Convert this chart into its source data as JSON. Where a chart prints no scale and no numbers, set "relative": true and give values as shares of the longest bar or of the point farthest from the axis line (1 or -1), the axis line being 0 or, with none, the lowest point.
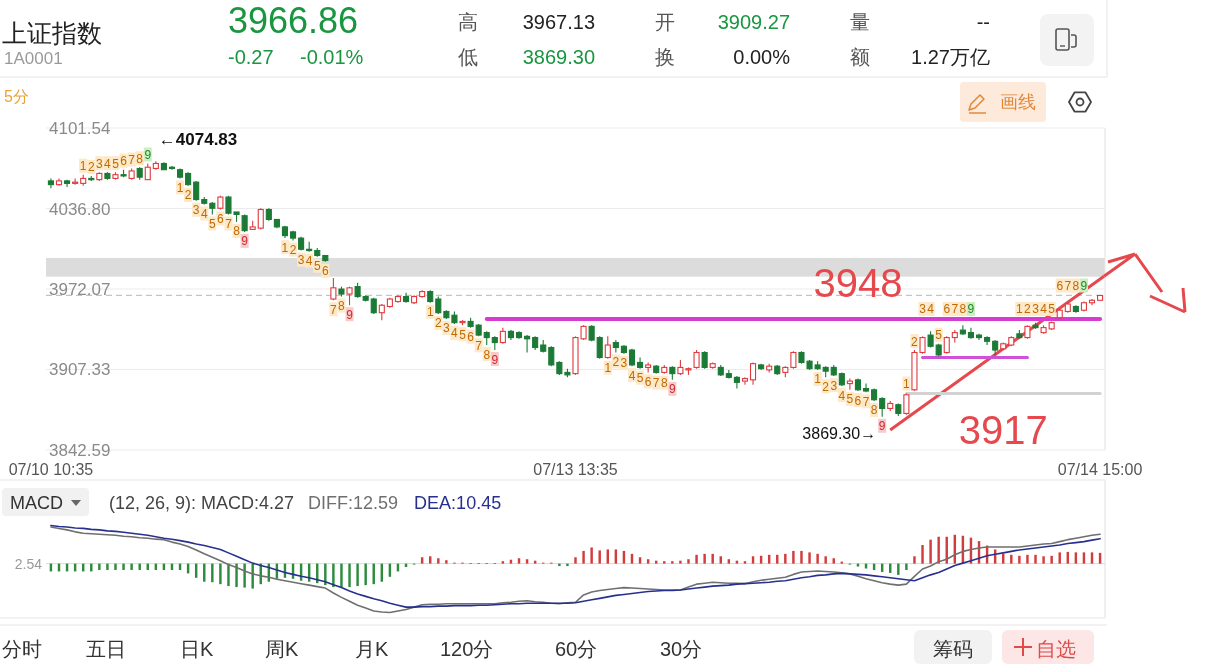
{
  "chart_data": [
    {
      "type": "other",
      "title": "上证指数",
      "subtitle": "1A0001",
      "annotations": [
        "3966.86",
        "-0.27",
        "-0.01%",
        "高",
        "3967.13",
        "低",
        "3869.30",
        "开",
        "3909.27",
        "换",
        "0.00%",
        "量",
        "--",
        "额",
        "1.27万亿",
        "5分",
        "画线"
      ]
    },
    {
      "type": "candlestick",
      "categories": [
        "07/10 10:35",
        null,
        null,
        null,
        null,
        null,
        null,
        null,
        null,
        null,
        null,
        null,
        null,
        null,
        null,
        null,
        null,
        null,
        null,
        null,
        null,
        null,
        null,
        null,
        null,
        null,
        null,
        null,
        null,
        null,
        null,
        null,
        null,
        null,
        null,
        null,
        null,
        null,
        null,
        null,
        null,
        null,
        null,
        null,
        null,
        null,
        null,
        null,
        null,
        null,
        null,
        null,
        null,
        null,
        null,
        null,
        null,
        null,
        null,
        null,
        null,
        null,
        null,
        null,
        null,
        "07/13 13:35",
        null,
        null,
        null,
        null,
        null,
        null,
        null,
        null,
        null,
        null,
        null,
        null,
        null,
        null,
        null,
        null,
        null,
        null,
        null,
        null,
        null,
        null,
        null,
        null,
        null,
        null,
        null,
        null,
        null,
        null,
        null,
        null,
        null,
        null,
        null,
        null,
        null,
        null,
        null,
        null,
        null,
        null,
        null,
        null,
        null,
        null,
        null,
        null,
        null,
        null,
        null,
        null,
        null,
        null,
        null,
        null,
        null,
        null,
        null,
        null,
        null,
        null,
        null,
        null,
        "07/14 15:00"
      ],
      "ohlc": [
        [
          4059,
          4061,
          4053,
          4056
        ],
        [
          4056,
          4061,
          4055,
          4059
        ],
        [
          4059,
          4060,
          4054,
          4057
        ],
        [
          4057,
          4061,
          4056,
          4058
        ],
        [
          4057,
          4064,
          4055,
          4061
        ],
        [
          4061,
          4063,
          4059,
          4060
        ],
        [
          4060,
          4066,
          4059,
          4065
        ],
        [
          4065,
          4066,
          4060,
          4061
        ],
        [
          4061,
          4066,
          4060,
          4064
        ],
        [
          4064,
          4068,
          4062,
          4063
        ],
        [
          4061,
          4069,
          4060,
          4067
        ],
        [
          4069,
          4070,
          4060,
          4062
        ],
        [
          4060,
          4073,
          4060,
          4070
        ],
        [
          4069,
          4074.83,
          4068,
          4073
        ],
        [
          4073,
          4074,
          4068,
          4068
        ],
        [
          4070,
          4071,
          4068,
          4069
        ],
        [
          4068,
          4069,
          4061,
          4062
        ],
        [
          4065,
          4066,
          4055,
          4056
        ],
        [
          4058,
          4059,
          4043,
          4044
        ],
        [
          4044,
          4046,
          4040,
          4041
        ],
        [
          4041,
          4042,
          4032,
          4037
        ],
        [
          4037,
          4047,
          4036,
          4046
        ],
        [
          4046,
          4047,
          4032,
          4033
        ],
        [
          4034,
          4034,
          4026,
          4032
        ],
        [
          4031,
          4032,
          4018,
          4019
        ],
        [
          4020,
          4027,
          4020,
          4022
        ],
        [
          4021,
          4037,
          4020,
          4036
        ],
        [
          4036,
          4037,
          4027,
          4028
        ],
        [
          4028,
          4028,
          4021,
          4022
        ],
        [
          4022,
          4023,
          4013,
          4015
        ],
        [
          4018,
          4019,
          4011,
          4013
        ],
        [
          4013,
          4014,
          4003,
          4004
        ],
        [
          4004,
          4010,
          4002,
          4003
        ],
        [
          4003,
          4005,
          3998,
          3999
        ],
        [
          3999,
          3999,
          3994,
          3995
        ],
        [
          3964,
          3981,
          3963,
          3973
        ],
        [
          3972,
          3974,
          3966,
          3968
        ],
        [
          3968,
          3974,
          3959,
          3973
        ],
        [
          3974,
          3977,
          3965,
          3966
        ],
        [
          3966,
          3967,
          3962,
          3963
        ],
        [
          3964,
          3965,
          3952,
          3953
        ],
        [
          3953,
          3960,
          3947,
          3959
        ],
        [
          3958,
          3965,
          3957,
          3964
        ],
        [
          3962,
          3967,
          3961,
          3966
        ],
        [
          3966,
          3969,
          3961,
          3962
        ],
        [
          3961,
          3967,
          3960,
          3966
        ],
        [
          3966,
          3971,
          3965,
          3970
        ],
        [
          3970,
          3971,
          3961,
          3962
        ],
        [
          3964,
          3966,
          3952,
          3953
        ],
        [
          3954,
          3955,
          3948,
          3949
        ],
        [
          3951,
          3954,
          3944,
          3945
        ],
        [
          3945,
          3947,
          3943,
          3946
        ],
        [
          3946,
          3949,
          3941,
          3942
        ],
        [
          3943,
          3944,
          3934,
          3935
        ],
        [
          3937,
          3938,
          3927,
          3933
        ],
        [
          3933,
          3934,
          3923,
          3929
        ],
        [
          3929,
          3941,
          3928,
          3938
        ],
        [
          3938,
          3939,
          3931,
          3933
        ],
        [
          3937,
          3938,
          3932,
          3933
        ],
        [
          3934,
          3935,
          3921,
          3932
        ],
        [
          3933,
          3934,
          3923,
          3925
        ],
        [
          3927,
          3931,
          3921,
          3922
        ],
        [
          3925,
          3926,
          3910,
          3911
        ],
        [
          3913,
          3914,
          3903,
          3904
        ],
        [
          3905,
          3908,
          3901,
          3903
        ],
        [
          3904,
          3934,
          3903,
          3933
        ],
        [
          3932,
          3943,
          3931,
          3942
        ],
        [
          3942,
          3943,
          3930,
          3931
        ],
        [
          3933,
          3934,
          3916,
          3917
        ],
        [
          3917,
          3934,
          3916,
          3927
        ],
        [
          3929,
          3931,
          3921,
          3925
        ],
        [
          3926,
          3927,
          3920,
          3921
        ],
        [
          3923,
          3924,
          3910,
          3911
        ],
        [
          3913,
          3917,
          3908,
          3909
        ],
        [
          3909,
          3913,
          3905,
          3911
        ],
        [
          3910,
          3911,
          3904,
          3905
        ],
        [
          3905,
          3911,
          3904,
          3909
        ],
        [
          3909,
          3910,
          3899,
          3904
        ],
        [
          3904,
          3915,
          3903,
          3909
        ],
        [
          3907,
          3909,
          3903,
          3908
        ],
        [
          3909,
          3923,
          3908,
          3921
        ],
        [
          3921,
          3922,
          3908,
          3909
        ],
        [
          3909,
          3913,
          3908,
          3912
        ],
        [
          3909,
          3911,
          3902,
          3903
        ],
        [
          3904,
          3907,
          3900,
          3901
        ],
        [
          3901,
          3902,
          3892,
          3897
        ],
        [
          3898,
          3901,
          3895,
          3900
        ],
        [
          3899,
          3913,
          3895,
          3912
        ],
        [
          3911,
          3912,
          3907,
          3908
        ],
        [
          3907,
          3912,
          3905,
          3910
        ],
        [
          3910,
          3911,
          3903,
          3904
        ],
        [
          3905,
          3910,
          3901,
          3909
        ],
        [
          3909,
          3922,
          3908,
          3921
        ],
        [
          3921,
          3922,
          3912,
          3913
        ],
        [
          3914,
          3915,
          3907,
          3908
        ],
        [
          3911,
          3914,
          3907,
          3908
        ],
        [
          3909,
          3910,
          3901,
          3906
        ],
        [
          3909,
          3911,
          3902,
          3903
        ],
        [
          3904,
          3905,
          3894,
          3895
        ],
        [
          3896,
          3900,
          3891,
          3898
        ],
        [
          3899,
          3900,
          3890,
          3891
        ],
        [
          3892,
          3896,
          3889,
          3890
        ],
        [
          3891,
          3892,
          3882,
          3883
        ],
        [
          3884,
          3885,
          3869.3,
          3876
        ],
        [
          3876,
          3882,
          3874,
          3880
        ],
        [
          3879,
          3880,
          3870,
          3872
        ],
        [
          3872,
          3888,
          3871,
          3887
        ],
        [
          3891,
          3923,
          3890,
          3921
        ],
        [
          3921,
          3934,
          3920,
          3933
        ],
        [
          3935,
          3938,
          3925,
          3926
        ],
        [
          3927,
          3928,
          3918,
          3919
        ],
        [
          3921,
          3934,
          3920,
          3933
        ],
        [
          3933,
          3939,
          3929,
          3937
        ],
        [
          3939,
          3943,
          3935,
          3936
        ],
        [
          3937,
          3941,
          3932,
          3933
        ],
        [
          3935,
          3936,
          3931,
          3933
        ],
        [
          3933,
          3934,
          3927,
          3930
        ],
        [
          3930,
          3931,
          3919,
          3923
        ],
        [
          3924,
          3929,
          3923,
          3928
        ],
        [
          3927,
          3934,
          3926,
          3933
        ],
        [
          3936,
          3939,
          3932,
          3933
        ],
        [
          3933,
          3943,
          3932,
          3942
        ],
        [
          3943,
          3945,
          3940,
          3941
        ],
        [
          3937,
          3943,
          3936,
          3941
        ],
        [
          3940,
          3946,
          3939,
          3945
        ],
        [
          3949,
          3956,
          3948,
          3955
        ],
        [
          3954,
          3961,
          3953,
          3960
        ],
        [
          3958,
          3959,
          3953,
          3954
        ],
        [
          3955,
          3962,
          3954,
          3961
        ],
        [
          3961,
          3964,
          3959,
          3963
        ],
        [
          3963,
          3967.13,
          3963,
          3966.86
        ]
      ],
      "colors": [
        "#1b7a35",
        "#e0393e",
        "#1b7a35",
        "#e0393e",
        "#e0393e",
        "#1b7a35",
        "#e0393e",
        "#1b7a35",
        "#e0393e",
        "#1b7a35",
        "#e0393e",
        "#1b7a35",
        "#e0393e",
        "#e0393e",
        "#1b7a35",
        "#1b7a35",
        "#1b7a35",
        "#1b7a35",
        "#1b7a35",
        "#1b7a35",
        "#1b7a35",
        "#e0393e",
        "#1b7a35",
        "#1b7a35",
        "#1b7a35",
        "#e0393e",
        "#e0393e",
        "#1b7a35",
        "#1b7a35",
        "#1b7a35",
        "#1b7a35",
        "#1b7a35",
        "#1b7a35",
        "#1b7a35",
        "#1b7a35",
        "#e0393e",
        "#1b7a35",
        "#e0393e",
        "#1b7a35",
        "#1b7a35",
        "#1b7a35",
        "#e0393e",
        "#e0393e",
        "#e0393e",
        "#1b7a35",
        "#e0393e",
        "#e0393e",
        "#1b7a35",
        "#1b7a35",
        "#1b7a35",
        "#1b7a35",
        "#e0393e",
        "#1b7a35",
        "#1b7a35",
        "#1b7a35",
        "#1b7a35",
        "#e0393e",
        "#1b7a35",
        "#1b7a35",
        "#1b7a35",
        "#1b7a35",
        "#1b7a35",
        "#1b7a35",
        "#1b7a35",
        "#1b7a35",
        "#e0393e",
        "#e0393e",
        "#1b7a35",
        "#1b7a35",
        "#e0393e",
        "#1b7a35",
        "#1b7a35",
        "#1b7a35",
        "#1b7a35",
        "#e0393e",
        "#1b7a35",
        "#e0393e",
        "#1b7a35",
        "#e0393e",
        "#e0393e",
        "#e0393e",
        "#1b7a35",
        "#e0393e",
        "#1b7a35",
        "#1b7a35",
        "#1b7a35",
        "#e0393e",
        "#e0393e",
        "#1b7a35",
        "#e0393e",
        "#1b7a35",
        "#e0393e",
        "#e0393e",
        "#1b7a35",
        "#1b7a35",
        "#1b7a35",
        "#1b7a35",
        "#1b7a35",
        "#1b7a35",
        "#e0393e",
        "#1b7a35",
        "#1b7a35",
        "#1b7a35",
        "#1b7a35",
        "#e0393e",
        "#1b7a35",
        "#e0393e",
        "#e0393e",
        "#e0393e",
        "#1b7a35",
        "#1b7a35",
        "#e0393e",
        "#e0393e",
        "#1b7a35",
        "#1b7a35",
        "#1b7a35",
        "#1b7a35",
        "#1b7a35",
        "#e0393e",
        "#e0393e",
        "#1b7a35",
        "#e0393e",
        "#1b7a35",
        "#e0393e",
        "#e0393e",
        "#e0393e",
        "#e0393e",
        "#1b7a35",
        "#e0393e",
        "#e0393e",
        "#e0393e"
      ],
      "ylim": [
        3842.59,
        4101.54
      ],
      "yticks": [
        4101.54,
        {
          "value": 4036.8,
          "label": "4036.80"
        },
        3972.07,
        3907.33,
        3842.59
      ],
      "grid": "y",
      "value_labels": [
        null,
        null,
        null,
        null,
        "1",
        "2",
        "3",
        "4",
        "5",
        "6",
        "7",
        "8",
        "9",
        null,
        null,
        null,
        "1",
        "2",
        "3",
        "4",
        "5",
        "6",
        "7",
        "8",
        "9",
        null,
        null,
        null,
        null,
        "1",
        "2",
        "3",
        "4",
        "5",
        "6",
        "7",
        "8",
        "9",
        null,
        null,
        null,
        null,
        null,
        null,
        null,
        null,
        null,
        "1",
        "2",
        "3",
        "4",
        "5",
        "6",
        "7",
        "8",
        "9",
        null,
        null,
        null,
        null,
        null,
        null,
        null,
        null,
        null,
        null,
        null,
        null,
        null,
        "1",
        "2",
        "3",
        "4",
        "5",
        "6",
        "7",
        "8",
        "9",
        null,
        null,
        null,
        null,
        null,
        null,
        null,
        null,
        null,
        null,
        null,
        null,
        null,
        null,
        null,
        null,
        null,
        "1",
        "2",
        "3",
        "4",
        "5",
        "6",
        "7",
        "8",
        "9",
        null,
        null,
        "1",
        "2",
        "3",
        "4",
        "5",
        "6",
        "7",
        "8",
        "9",
        null,
        null,
        null,
        null,
        null,
        "1",
        "2",
        "3",
        "4",
        "5",
        "6",
        "7",
        "8",
        "9",
        null,
        null
      ],
      "ref_lines": [
        {
          "axis": "y",
          "value": 3966.86,
          "color": "#c4c4c4",
          "line_style": "dashed"
        }
      ],
      "bands": [
        {
          "axis": "y",
          "from": 3982,
          "to": 3997,
          "color": "#dcdcdc"
        }
      ],
      "series": [
        {
          "type": "line",
          "color": "#d63ccf",
          "values": [
            null,
            null,
            null,
            null,
            null,
            null,
            null,
            null,
            null,
            null,
            null,
            null,
            null,
            null,
            null,
            null,
            null,
            null,
            null,
            null,
            null,
            null,
            null,
            null,
            null,
            null,
            null,
            null,
            null,
            null,
            null,
            null,
            null,
            null,
            null,
            null,
            null,
            null,
            null,
            null,
            null,
            null,
            null,
            null,
            null,
            null,
            null,
            null,
            null,
            null,
            null,
            null,
            null,
            null,
            3948,
            3948,
            3948,
            3948,
            3948,
            3948,
            3948,
            3948,
            3948,
            3948,
            3948,
            3948,
            3948,
            3948,
            3948,
            3948,
            3948,
            3948,
            3948,
            3948,
            3948,
            3948,
            3948,
            3948,
            3948,
            3948,
            3948,
            3948,
            3948,
            3948,
            3948,
            3948,
            3948,
            3948,
            3948,
            3948,
            3948,
            3948,
            3948,
            3948,
            3948,
            3948,
            3948,
            3948,
            3948,
            3948,
            3948,
            3948,
            3948,
            3948,
            3948,
            3948,
            3948,
            3948,
            3948,
            3948,
            3948,
            3948,
            3948,
            3948,
            3948,
            3948,
            3948,
            3948,
            3948,
            3948,
            3948,
            3948,
            3948,
            3948,
            3948,
            3948,
            3948,
            3948,
            3948,
            3948,
            3948
          ]
        },
        {
          "type": "line",
          "color": "#d050d8",
          "values": [
            null,
            null,
            null,
            null,
            null,
            null,
            null,
            null,
            null,
            null,
            null,
            null,
            null,
            null,
            null,
            null,
            null,
            null,
            null,
            null,
            null,
            null,
            null,
            null,
            null,
            null,
            null,
            null,
            null,
            null,
            null,
            null,
            null,
            null,
            null,
            null,
            null,
            null,
            null,
            null,
            null,
            null,
            null,
            null,
            null,
            null,
            null,
            null,
            null,
            null,
            null,
            null,
            null,
            null,
            null,
            null,
            null,
            null,
            null,
            null,
            null,
            null,
            null,
            null,
            null,
            null,
            null,
            null,
            null,
            null,
            null,
            null,
            null,
            null,
            null,
            null,
            null,
            null,
            null,
            null,
            null,
            null,
            null,
            null,
            null,
            null,
            null,
            null,
            null,
            null,
            null,
            null,
            null,
            null,
            null,
            null,
            null,
            null,
            null,
            null,
            null,
            null,
            null,
            null,
            null,
            null,
            null,
            null,
            3917,
            3917,
            3917,
            3917,
            3917,
            3917,
            3917,
            3917,
            3917,
            3917,
            3917,
            3917,
            3917,
            3917,
            null,
            null,
            null,
            null,
            null,
            null,
            null,
            null,
            null
          ]
        },
        {
          "type": "line",
          "color": "#d2d2d2",
          "values": [
            null,
            null,
            null,
            null,
            null,
            null,
            null,
            null,
            null,
            null,
            null,
            null,
            null,
            null,
            null,
            null,
            null,
            null,
            null,
            null,
            null,
            null,
            null,
            null,
            null,
            null,
            null,
            null,
            null,
            null,
            null,
            null,
            null,
            null,
            null,
            null,
            null,
            null,
            null,
            null,
            null,
            null,
            null,
            null,
            null,
            null,
            null,
            null,
            null,
            null,
            null,
            null,
            null,
            null,
            null,
            null,
            null,
            null,
            null,
            null,
            null,
            null,
            null,
            null,
            null,
            null,
            null,
            null,
            null,
            null,
            null,
            null,
            null,
            null,
            null,
            null,
            null,
            null,
            null,
            null,
            null,
            null,
            null,
            null,
            null,
            null,
            null,
            null,
            null,
            null,
            null,
            null,
            null,
            null,
            null,
            null,
            null,
            null,
            null,
            null,
            null,
            null,
            null,
            null,
            null,
            null,
            3888,
            3888,
            3888,
            3888,
            3888,
            3888,
            3888,
            3888,
            3888,
            3888,
            3888,
            3888,
            3888,
            3888,
            3888,
            3888,
            3888,
            3888,
            3888,
            3888,
            3888,
            3888,
            3888,
            3888,
            3888
          ]
        }
      ],
      "annotations": [
        "←4074.83",
        "3869.30→",
        "3948",
        "3917"
      ]
    },
    {
      "type": "bar",
      "title": "MACD",
      "subtitle": "(12, 26, 9): MACD:4.27",
      "relative": true,
      "legend": "top left",
      "annotations": [
        "2.54"
      ],
      "categories": [
        null,
        null,
        null,
        null,
        null,
        null,
        null,
        null,
        null,
        null,
        null,
        null,
        null,
        null,
        null,
        null,
        null,
        null,
        null,
        null,
        null,
        null,
        null,
        null,
        null,
        null,
        null,
        null,
        null,
        null,
        null,
        null,
        null,
        null,
        null,
        null,
        null,
        null,
        null,
        null,
        null,
        null,
        null,
        null,
        null,
        null,
        null,
        null,
        null,
        null,
        null,
        null,
        null,
        null,
        null,
        null,
        null,
        null,
        null,
        null,
        null,
        null,
        null,
        null,
        null,
        null,
        null,
        null,
        null,
        null,
        null,
        null,
        null,
        null,
        null,
        null,
        null,
        null,
        null,
        null,
        null,
        null,
        null,
        null,
        null,
        null,
        null,
        null,
        null,
        null,
        null,
        null,
        null,
        null,
        null,
        null,
        null,
        null,
        null,
        null,
        null,
        null,
        null,
        null,
        null,
        null,
        null,
        null,
        null,
        null,
        null,
        null,
        null,
        null,
        null,
        null,
        null,
        null,
        null,
        null,
        null,
        null,
        null,
        null,
        null,
        null,
        null,
        null,
        null,
        null,
        null
      ],
      "series": [
        {
          "type": "bar",
          "values": [
            -0.16,
            -0.16,
            -0.16,
            -0.16,
            -0.16,
            -0.16,
            -0.13,
            -0.13,
            -0.13,
            -0.13,
            -0.13,
            -0.13,
            -0.13,
            -0.13,
            -0.13,
            -0.13,
            -0.13,
            -0.2,
            -0.29,
            -0.37,
            -0.38,
            -0.42,
            -0.46,
            -0.48,
            -0.49,
            -0.51,
            -0.42,
            -0.37,
            -0.31,
            -0.29,
            -0.31,
            -0.35,
            -0.37,
            -0.4,
            -0.44,
            -0.48,
            -0.49,
            -0.48,
            -0.46,
            -0.44,
            -0.42,
            -0.37,
            -0.27,
            -0.16,
            -0.07,
            -0.02,
            0.13,
            0.15,
            0.11,
            0.07,
            0.02,
            0.02,
            0.01,
            0.01,
            0.01,
            0.01,
            0.05,
            0.08,
            0.11,
            0.09,
            0.06,
            0.02,
            0.02,
            -0.05,
            -0.05,
            0.13,
            0.26,
            0.33,
            0.27,
            0.29,
            0.29,
            0.26,
            0.2,
            0.13,
            0.09,
            0.06,
            0.05,
            0.05,
            0.06,
            0.09,
            0.18,
            0.2,
            0.2,
            0.15,
            0.09,
            0.06,
            0.05,
            0.15,
            0.16,
            0.18,
            0.18,
            0.2,
            0.26,
            0.26,
            0.23,
            0.2,
            0.15,
            0.11,
            0.04,
            -0.02,
            -0.06,
            -0.1,
            -0.13,
            -0.17,
            -0.19,
            -0.23,
            -0.13,
            0.15,
            0.38,
            0.49,
            0.55,
            0.55,
            0.59,
            0.57,
            0.53,
            0.46,
            0.37,
            0.29,
            0.2,
            0.18,
            0.16,
            0.18,
            0.18,
            0.15,
            0.16,
            0.23,
            0.24,
            0.23,
            0.23,
            0.23,
            0.22
          ],
          "colors": [
            "#2e8b3e",
            "#2e8b3e",
            "#2e8b3e",
            "#2e8b3e",
            "#2e8b3e",
            "#2e8b3e",
            "#2e8b3e",
            "#2e8b3e",
            "#2e8b3e",
            "#2e8b3e",
            "#2e8b3e",
            "#2e8b3e",
            "#2e8b3e",
            "#2e8b3e",
            "#2e8b3e",
            "#2e8b3e",
            "#2e8b3e",
            "#2e8b3e",
            "#2e8b3e",
            "#2e8b3e",
            "#2e8b3e",
            "#2e8b3e",
            "#2e8b3e",
            "#2e8b3e",
            "#2e8b3e",
            "#2e8b3e",
            "#2e8b3e",
            "#2e8b3e",
            "#2e8b3e",
            "#2e8b3e",
            "#2e8b3e",
            "#2e8b3e",
            "#2e8b3e",
            "#2e8b3e",
            "#2e8b3e",
            "#2e8b3e",
            "#2e8b3e",
            "#2e8b3e",
            "#2e8b3e",
            "#2e8b3e",
            "#2e8b3e",
            "#2e8b3e",
            "#2e8b3e",
            "#2e8b3e",
            "#2e8b3e",
            "#2e8b3e",
            "#d23c3c",
            "#d23c3c",
            "#d23c3c",
            "#d23c3c",
            "#d23c3c",
            "#d23c3c",
            "#d23c3c",
            "#d23c3c",
            "#d23c3c",
            "#d23c3c",
            "#d23c3c",
            "#d23c3c",
            "#d23c3c",
            "#d23c3c",
            "#d23c3c",
            "#d23c3c",
            "#d23c3c",
            "#2e8b3e",
            "#2e8b3e",
            "#d23c3c",
            "#d23c3c",
            "#d23c3c",
            "#d23c3c",
            "#d23c3c",
            "#d23c3c",
            "#d23c3c",
            "#d23c3c",
            "#d23c3c",
            "#d23c3c",
            "#d23c3c",
            "#d23c3c",
            "#d23c3c",
            "#d23c3c",
            "#d23c3c",
            "#d23c3c",
            "#d23c3c",
            "#d23c3c",
            "#d23c3c",
            "#d23c3c",
            "#d23c3c",
            "#d23c3c",
            "#d23c3c",
            "#d23c3c",
            "#d23c3c",
            "#d23c3c",
            "#d23c3c",
            "#d23c3c",
            "#d23c3c",
            "#d23c3c",
            "#d23c3c",
            "#d23c3c",
            "#d23c3c",
            "#d23c3c",
            "#2e8b3e",
            "#2e8b3e",
            "#2e8b3e",
            "#2e8b3e",
            "#2e8b3e",
            "#2e8b3e",
            "#2e8b3e",
            "#2e8b3e",
            "#d23c3c",
            "#d23c3c",
            "#d23c3c",
            "#d23c3c",
            "#d23c3c",
            "#d23c3c",
            "#d23c3c",
            "#d23c3c",
            "#d23c3c",
            "#d23c3c",
            "#d23c3c",
            "#d23c3c",
            "#d23c3c",
            "#d23c3c",
            "#d23c3c",
            "#d23c3c",
            "#d23c3c",
            "#d23c3c",
            "#d23c3c",
            "#d23c3c",
            "#d23c3c",
            "#d23c3c",
            "#d23c3c",
            "#d23c3c"
          ]
        },
        {
          "type": "line",
          "name": "DIFF:12.59",
          "color": "#6f6f6f",
          "values": [
            0.75,
            0.72,
            0.69,
            0.65,
            0.62,
            0.61,
            0.6,
            0.59,
            0.58,
            0.56,
            0.55,
            0.53,
            0.52,
            0.5,
            0.49,
            0.44,
            0.4,
            0.35,
            0.28,
            0.2,
            0.13,
            0.06,
            -0.02,
            -0.08,
            -0.15,
            -0.21,
            -0.25,
            -0.28,
            -0.32,
            -0.35,
            -0.38,
            -0.41,
            -0.44,
            -0.47,
            -0.5,
            -0.6,
            -0.69,
            -0.77,
            -0.85,
            -0.91,
            -0.97,
            -0.99,
            -1,
            -0.97,
            -0.94,
            -0.89,
            -0.84,
            -0.83,
            -0.83,
            -0.82,
            -0.82,
            -0.82,
            -0.82,
            -0.82,
            -0.82,
            -0.82,
            -0.8,
            -0.79,
            -0.77,
            -0.76,
            -0.78,
            -0.79,
            -0.81,
            -0.82,
            -0.8,
            -0.79,
            -0.64,
            -0.58,
            -0.55,
            -0.53,
            -0.51,
            -0.49,
            -0.5,
            -0.51,
            -0.52,
            -0.53,
            -0.54,
            -0.54,
            -0.54,
            -0.48,
            -0.42,
            -0.4,
            -0.38,
            -0.39,
            -0.4,
            -0.4,
            -0.41,
            -0.37,
            -0.34,
            -0.32,
            -0.3,
            -0.28,
            -0.22,
            -0.17,
            -0.16,
            -0.15,
            -0.16,
            -0.17,
            -0.19,
            -0.21,
            -0.26,
            -0.31,
            -0.35,
            -0.39,
            -0.42,
            -0.44,
            -0.42,
            -0.26,
            -0.11,
            -0.05,
            0.04,
            0.09,
            0.18,
            0.25,
            0.29,
            0.32,
            0.34,
            0.34,
            0.34,
            0.34,
            0.34,
            0.36,
            0.38,
            0.4,
            0.41,
            0.45,
            0.49,
            0.52,
            0.55,
            0.58,
            0.6
          ]
        },
        {
          "type": "line",
          "name": "DEA:10.45",
          "color": "#28308f",
          "values": [
            0.78,
            0.76,
            0.75,
            0.73,
            0.72,
            0.7,
            0.69,
            0.67,
            0.66,
            0.64,
            0.62,
            0.6,
            0.58,
            0.55,
            0.52,
            0.5,
            0.47,
            0.44,
            0.4,
            0.37,
            0.33,
            0.29,
            0.22,
            0.15,
            0.08,
            0.01,
            -0.04,
            -0.08,
            -0.13,
            -0.18,
            -0.22,
            -0.26,
            -0.29,
            -0.33,
            -0.37,
            -0.43,
            -0.49,
            -0.56,
            -0.62,
            -0.67,
            -0.72,
            -0.76,
            -0.81,
            -0.85,
            -0.89,
            -0.89,
            -0.88,
            -0.88,
            -0.87,
            -0.87,
            -0.86,
            -0.86,
            -0.86,
            -0.85,
            -0.85,
            -0.84,
            -0.83,
            -0.82,
            -0.82,
            -0.81,
            -0.81,
            -0.81,
            -0.81,
            -0.81,
            -0.81,
            -0.8,
            -0.77,
            -0.74,
            -0.71,
            -0.68,
            -0.65,
            -0.63,
            -0.61,
            -0.59,
            -0.57,
            -0.56,
            -0.55,
            -0.55,
            -0.54,
            -0.52,
            -0.5,
            -0.48,
            -0.46,
            -0.45,
            -0.44,
            -0.42,
            -0.41,
            -0.4,
            -0.39,
            -0.38,
            -0.36,
            -0.35,
            -0.32,
            -0.29,
            -0.27,
            -0.24,
            -0.23,
            -0.21,
            -0.2,
            -0.21,
            -0.22,
            -0.23,
            -0.25,
            -0.27,
            -0.29,
            -0.31,
            -0.33,
            -0.35,
            -0.29,
            -0.23,
            -0.18,
            -0.11,
            -0.04,
            0.01,
            0.06,
            0.11,
            0.16,
            0.19,
            0.22,
            0.25,
            0.28,
            0.3,
            0.32,
            0.34,
            0.36,
            0.38,
            0.41,
            0.43,
            0.45,
            0.48,
            0.51
          ]
        }
      ]
    },
    {
      "type": "other",
      "annotations": [
        "分时",
        "五日",
        "日K",
        "周K",
        "月K",
        "120分",
        "60分",
        "30分",
        "筹码",
        "自选"
      ]
    }
  ]
}
